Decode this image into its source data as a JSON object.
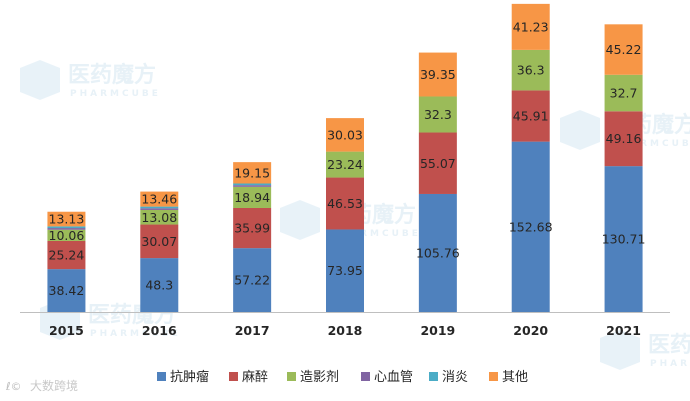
{
  "chart_data": {
    "type": "bar",
    "stacked": true,
    "title": "",
    "xlabel": "",
    "ylabel": "",
    "categories": [
      "2015",
      "2016",
      "2017",
      "2018",
      "2019",
      "2020",
      "2021"
    ],
    "ylim": [
      0,
      276
    ],
    "grid": false,
    "legend_position": "bottom",
    "series": [
      {
        "name": "抗肿瘤",
        "color": "#4f81bd",
        "values": [
          38.42,
          48.3,
          57.22,
          73.95,
          105.76,
          152.68,
          130.71
        ],
        "labels": [
          "38.42",
          "48.3",
          "57.22",
          "73.95",
          "105.76",
          "152.68",
          "130.71"
        ]
      },
      {
        "name": "麻醉",
        "color": "#c0504d",
        "values": [
          25.24,
          30.07,
          35.99,
          46.53,
          55.07,
          45.91,
          49.16
        ],
        "labels": [
          "25.24",
          "30.07",
          "35.99",
          "46.53",
          "55.07",
          "45.91",
          "49.16"
        ]
      },
      {
        "name": "造影剂",
        "color": "#9bbb59",
        "values": [
          10.06,
          13.08,
          18.94,
          23.24,
          32.3,
          36.3,
          32.7
        ],
        "labels": [
          "10.06",
          "13.08",
          "18.94",
          "23.24",
          "32.3",
          "36.3",
          "32.7"
        ]
      },
      {
        "name": "心血管",
        "color": "#8064a2",
        "values": [
          1.5,
          1.5,
          1.5,
          0,
          0,
          0,
          0
        ],
        "labels": [
          "",
          "",
          "",
          "",
          "",
          "",
          ""
        ]
      },
      {
        "name": "消炎",
        "color": "#4bacc6",
        "values": [
          1.5,
          1.5,
          1.5,
          0,
          0,
          0,
          0
        ],
        "labels": [
          "",
          "",
          "",
          "",
          "",
          "",
          ""
        ]
      },
      {
        "name": "其他",
        "color": "#f79646",
        "values": [
          13.13,
          13.46,
          19.15,
          30.03,
          39.35,
          41.23,
          45.22
        ],
        "labels": [
          "13.13",
          "13.46",
          "19.15",
          "30.03",
          "39.35",
          "41.23",
          "45.22"
        ]
      }
    ]
  },
  "watermark": {
    "brand": "医药魔方",
    "sub": "PHARMCUBE",
    "credit": "大数跨境",
    "credit_symbol": "ℓ©"
  }
}
